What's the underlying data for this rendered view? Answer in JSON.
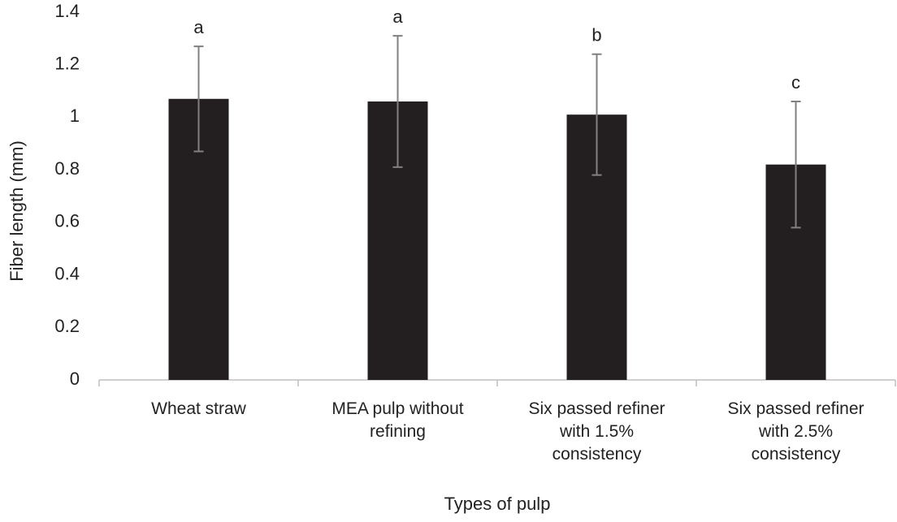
{
  "chart_data": {
    "type": "bar",
    "x_label": "Types of pulp",
    "y_label": "Fiber length (mm)",
    "categories": [
      "Wheat straw",
      "MEA pulp without refining",
      "Six passed refiner with 1.5% consistency",
      "Six passed refiner with 2.5% consistency"
    ],
    "values": [
      1.07,
      1.06,
      1.01,
      0.82
    ],
    "errors": [
      0.2,
      0.25,
      0.23,
      0.24
    ],
    "annotations": [
      "a",
      "a",
      "b",
      "c"
    ],
    "color": "#231f20",
    "error_color": "#808080",
    "ylim": [
      0,
      1.4
    ],
    "yticks": [
      0,
      0.2,
      0.4,
      0.6,
      0.8,
      1,
      1.2,
      1.4
    ],
    "grid": false
  }
}
